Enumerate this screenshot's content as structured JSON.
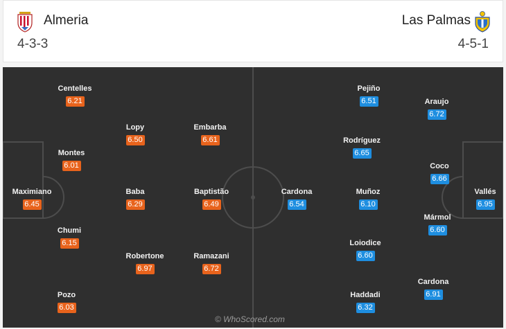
{
  "home": {
    "name": "Almeria",
    "formation": "4-3-3",
    "players": [
      {
        "name": "Centelles",
        "rating": "6.21"
      },
      {
        "name": "Montes",
        "rating": "6.01"
      },
      {
        "name": "Maximiano",
        "rating": "6.45"
      },
      {
        "name": "Chumi",
        "rating": "6.15"
      },
      {
        "name": "Pozo",
        "rating": "6.03"
      },
      {
        "name": "Lopy",
        "rating": "6.50"
      },
      {
        "name": "Baba",
        "rating": "6.29"
      },
      {
        "name": "Robertone",
        "rating": "6.97"
      },
      {
        "name": "Embarba",
        "rating": "6.61"
      },
      {
        "name": "Baptistão",
        "rating": "6.49"
      },
      {
        "name": "Ramazani",
        "rating": "6.72"
      }
    ]
  },
  "away": {
    "name": "Las Palmas",
    "formation": "4-5-1",
    "players": [
      {
        "name": "Cardona",
        "rating": "6.54"
      },
      {
        "name": "Pejiño",
        "rating": "6.51"
      },
      {
        "name": "Rodríguez",
        "rating": "6.65"
      },
      {
        "name": "Muñoz",
        "rating": "6.10"
      },
      {
        "name": "Loiodice",
        "rating": "6.60"
      },
      {
        "name": "Haddadi",
        "rating": "6.32"
      },
      {
        "name": "Araujo",
        "rating": "6.72"
      },
      {
        "name": "Coco",
        "rating": "6.66"
      },
      {
        "name": "Mármol",
        "rating": "6.60"
      },
      {
        "name": "Cardona",
        "rating": "6.91"
      },
      {
        "name": "Vallés",
        "rating": "6.95"
      }
    ]
  },
  "watermark": "© WhoScored.com",
  "colors": {
    "home_rating": "#e8631c",
    "away_rating": "#1e8ee0",
    "pitch": "#2f2f2f"
  },
  "icons": {
    "home_crest": "almeria-crest-icon",
    "away_crest": "las-palmas-crest-icon"
  }
}
